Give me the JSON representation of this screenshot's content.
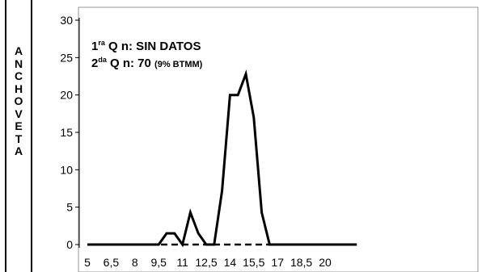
{
  "side_label": [
    "A",
    "N",
    "C",
    "H",
    "O",
    "V",
    "E",
    "T",
    "A"
  ],
  "annotations": {
    "line1": {
      "prefix": "1",
      "sup": "ra",
      "text": " Q n:  SIN DATOS",
      "small": ""
    },
    "line2": {
      "prefix": "2",
      "sup": "da",
      "text": " Q n: 70 ",
      "small": "(9% BTMM)"
    }
  },
  "chart_data": {
    "type": "line",
    "title": "",
    "xlabel": "",
    "ylabel": "",
    "ylim": [
      0,
      30
    ],
    "y_ticks": [
      "0",
      "5",
      "10",
      "15",
      "20",
      "25",
      "30"
    ],
    "x_tick_labels": [
      "5",
      "6,5",
      "8",
      "9,5",
      "11",
      "12,5",
      "14",
      "15,5",
      "17",
      "18,5",
      "20"
    ],
    "x": [
      5,
      5.5,
      6,
      6.5,
      7,
      7.5,
      8,
      8.5,
      9,
      9.5,
      10,
      10.5,
      11,
      11.5,
      12,
      12.5,
      13,
      13.5,
      14,
      14.5,
      15,
      15.5,
      16,
      16.5,
      17,
      17.5,
      18,
      18.5,
      19,
      19.5,
      20,
      20.5,
      21,
      21.5,
      22
    ],
    "series": [
      {
        "style": "solid",
        "color": "#000000",
        "values": [
          0,
          0,
          0,
          0,
          0,
          0,
          0,
          0,
          0,
          0,
          1.5,
          1.5,
          0,
          4.3,
          1.5,
          0,
          0,
          7.2,
          20,
          20,
          22.8,
          17,
          4.3,
          0,
          0,
          0,
          0,
          0,
          0,
          0,
          0,
          0,
          0,
          0,
          0
        ]
      },
      {
        "style": "dashed",
        "color": "#000000",
        "values": [
          0,
          0,
          0,
          0,
          0,
          0,
          0,
          0,
          0,
          0,
          0,
          0,
          0,
          0,
          0,
          0,
          0,
          0,
          0,
          0,
          0,
          0,
          0,
          0,
          0,
          0,
          0,
          0,
          0,
          0,
          0,
          0,
          0,
          0,
          0
        ]
      }
    ]
  }
}
